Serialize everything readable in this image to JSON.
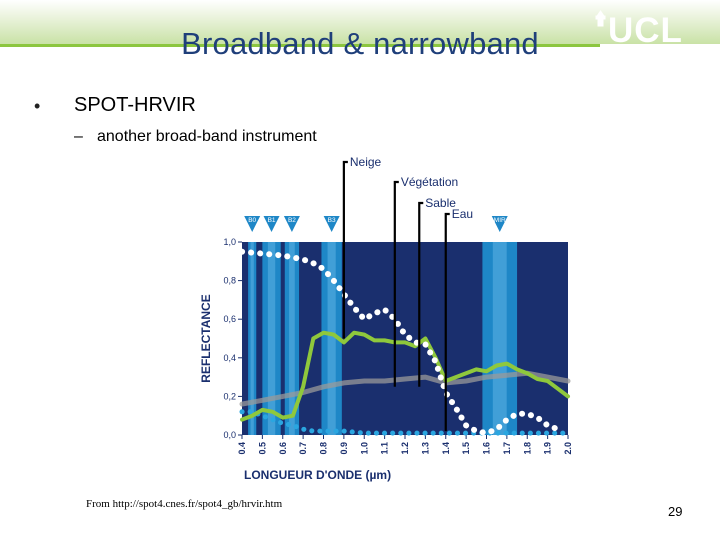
{
  "slide": {
    "title": "Broadband & narrowband",
    "bullet1": "SPOT-HRVIR",
    "bullet2_dash": "–",
    "bullet2": "another broad-band instrument",
    "source": "From http://spot4.cnes.fr/spot4_gb/hrvir.htm",
    "page_number": "29",
    "logo_text": "UCL"
  },
  "colors": {
    "title": "#1f3f7a",
    "accent_green": "#8cc63f",
    "band": "#1e87c7",
    "plot_bg": "#1a2f6e",
    "snow": "#ffffff",
    "vegetation": "#8fc83c",
    "sand": "#9a9a9a",
    "water": "#2aa6e0"
  },
  "chart_data": {
    "type": "line",
    "title": "",
    "xlabel": "LONGUEUR D'ONDE (µm)",
    "ylabel": "REFLECTANCE",
    "xlim": [
      0.4,
      2.0
    ],
    "ylim": [
      0.0,
      1.0
    ],
    "x_ticks": [
      "0.4",
      "0.5",
      "0.6",
      "0.7",
      "0.8",
      "0.9",
      "1.0",
      "1.1",
      "1.2",
      "1.3",
      "1.4",
      "1.5",
      "1.6",
      "1.7",
      "1.8",
      "1.9",
      "2.0"
    ],
    "y_ticks": [
      "0,0",
      "0,2",
      "0,4",
      "0,6",
      "0,8",
      "1,0"
    ],
    "bands": [
      {
        "name": "B0",
        "start": 0.43,
        "end": 0.47
      },
      {
        "name": "B1",
        "start": 0.5,
        "end": 0.59
      },
      {
        "name": "B2",
        "start": 0.61,
        "end": 0.68
      },
      {
        "name": "B3",
        "start": 0.79,
        "end": 0.89
      },
      {
        "name": "MIR",
        "start": 1.58,
        "end": 1.75
      }
    ],
    "series": [
      {
        "name": "Neige",
        "style": "dotted",
        "x": [
          0.4,
          0.5,
          0.6,
          0.7,
          0.75,
          0.8,
          0.85,
          0.9,
          0.95,
          1.0,
          1.05,
          1.1,
          1.15,
          1.2,
          1.25,
          1.3,
          1.35,
          1.4,
          1.45,
          1.5,
          1.55,
          1.6,
          1.65,
          1.7,
          1.75,
          1.8,
          1.85,
          1.9,
          1.95
        ],
        "y": [
          0.95,
          0.94,
          0.93,
          0.91,
          0.89,
          0.86,
          0.8,
          0.73,
          0.66,
          0.6,
          0.63,
          0.65,
          0.6,
          0.52,
          0.48,
          0.47,
          0.38,
          0.22,
          0.14,
          0.05,
          0.02,
          0.01,
          0.03,
          0.08,
          0.11,
          0.11,
          0.09,
          0.05,
          0.03
        ],
        "label_point": [
          0.9,
          1.0
        ]
      },
      {
        "name": "Végétation",
        "style": "solid",
        "x": [
          0.4,
          0.45,
          0.5,
          0.55,
          0.6,
          0.65,
          0.7,
          0.75,
          0.8,
          0.85,
          0.9,
          0.95,
          1.0,
          1.05,
          1.1,
          1.15,
          1.2,
          1.25,
          1.3,
          1.35,
          1.4,
          1.45,
          1.5,
          1.55,
          1.6,
          1.65,
          1.7,
          1.75,
          1.8,
          1.85,
          1.9,
          1.95,
          2.0
        ],
        "y": [
          0.08,
          0.1,
          0.13,
          0.12,
          0.09,
          0.1,
          0.25,
          0.5,
          0.53,
          0.52,
          0.48,
          0.53,
          0.52,
          0.49,
          0.49,
          0.48,
          0.48,
          0.46,
          0.5,
          0.4,
          0.28,
          0.3,
          0.32,
          0.34,
          0.33,
          0.36,
          0.37,
          0.34,
          0.32,
          0.29,
          0.28,
          0.24,
          0.2
        ],
        "label_point": [
          1.15,
          0.98
        ]
      },
      {
        "name": "Sable",
        "style": "solid",
        "x": [
          0.4,
          0.5,
          0.6,
          0.7,
          0.8,
          0.9,
          1.0,
          1.1,
          1.2,
          1.3,
          1.4,
          1.5,
          1.6,
          1.7,
          1.8,
          1.9,
          2.0
        ],
        "y": [
          0.16,
          0.18,
          0.2,
          0.22,
          0.25,
          0.27,
          0.28,
          0.28,
          0.29,
          0.3,
          0.27,
          0.28,
          0.3,
          0.31,
          0.32,
          0.3,
          0.28
        ],
        "label_point": [
          1.27,
          0.9
        ]
      },
      {
        "name": "Eau",
        "style": "dotted",
        "x": [
          0.4,
          0.45,
          0.5,
          0.55,
          0.6,
          0.65,
          0.7,
          0.75,
          0.8,
          0.9,
          1.0,
          1.2,
          1.4,
          1.6,
          1.8,
          2.0
        ],
        "y": [
          0.12,
          0.12,
          0.1,
          0.08,
          0.06,
          0.05,
          0.03,
          0.02,
          0.02,
          0.02,
          0.01,
          0.01,
          0.01,
          0.01,
          0.01,
          0.01
        ],
        "label_point": [
          1.4,
          0.86
        ]
      }
    ]
  }
}
